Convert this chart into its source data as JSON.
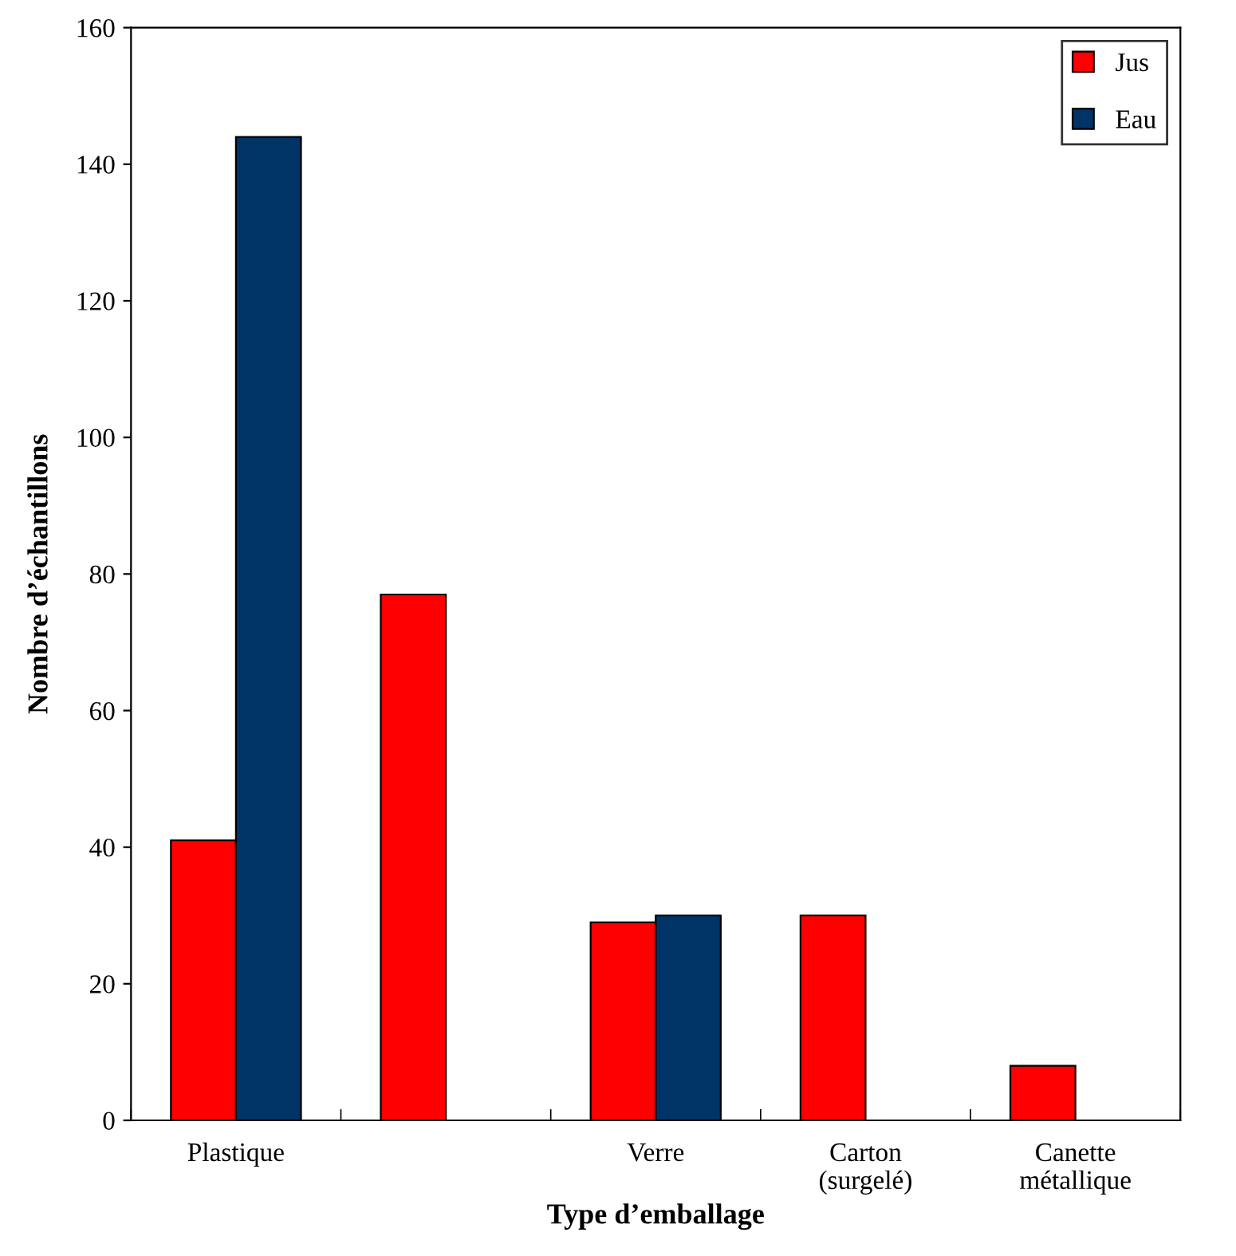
{
  "chart_data": {
    "type": "bar",
    "xlabel": "Type d’emballage",
    "ylabel": "Nombre d’échantillons",
    "categories": [
      "Plastique",
      null,
      "Verre",
      "Carton\n(surgelé)",
      "Canette\nmétallique"
    ],
    "series": [
      {
        "name": "Jus",
        "color": "#ff0000",
        "values": [
          41,
          77,
          29,
          30,
          8
        ]
      },
      {
        "name": "Eau",
        "color": "#003366",
        "values": [
          144,
          null,
          30,
          null,
          null
        ]
      }
    ],
    "ylim": [
      0,
      160
    ],
    "yticks": [
      0,
      20,
      40,
      60,
      80,
      100,
      120,
      140,
      160
    ],
    "grid": false,
    "legend": "top right"
  }
}
